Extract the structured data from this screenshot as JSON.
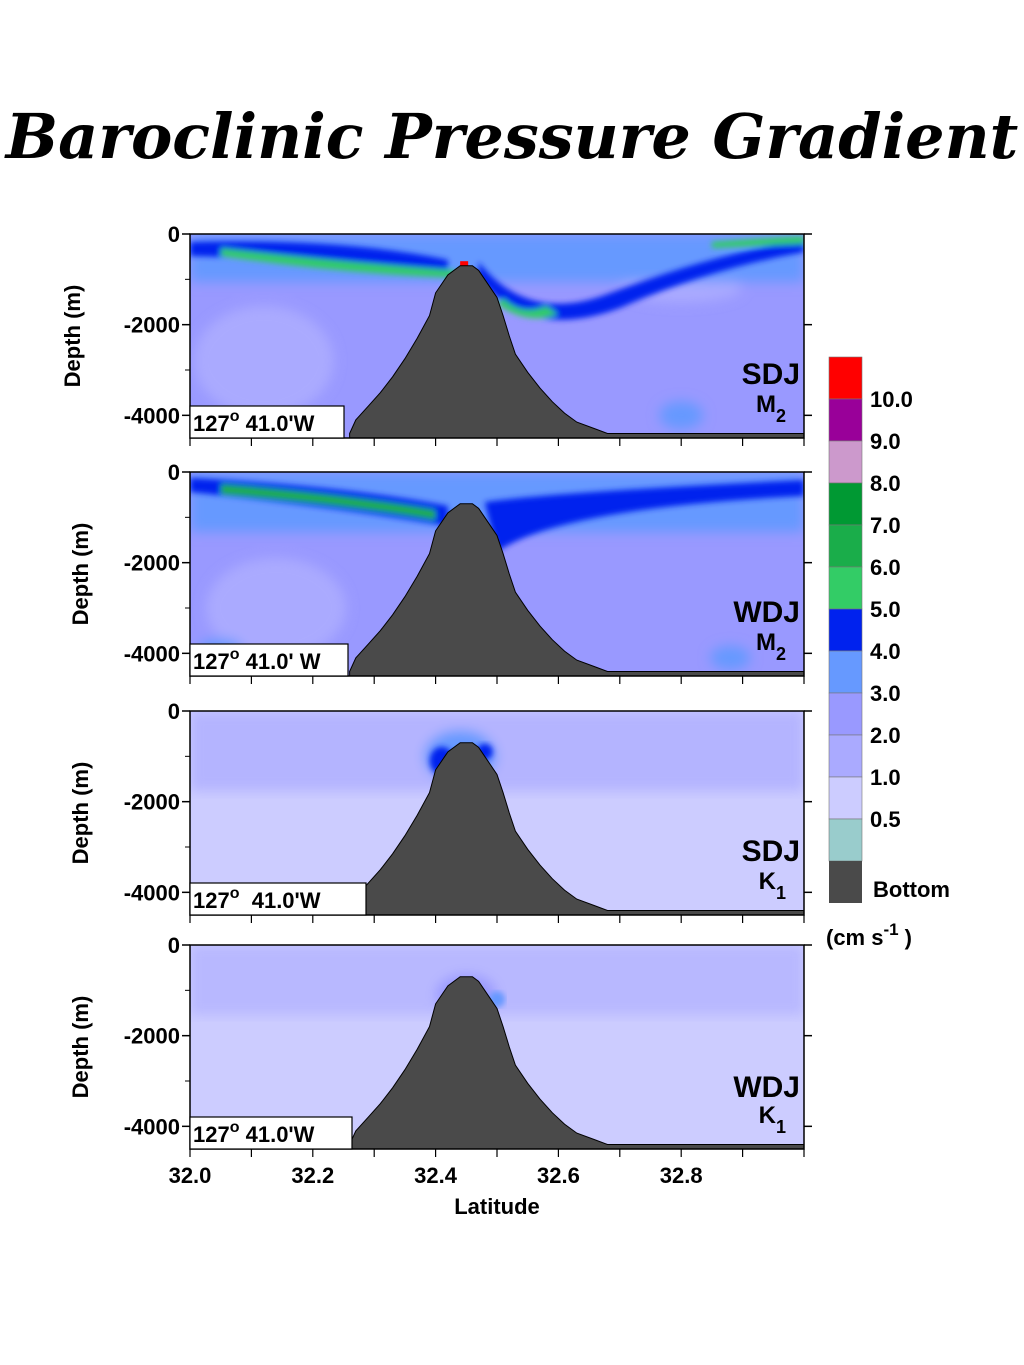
{
  "chart_data": {
    "type": "heatmap",
    "title": "Baroclinic Pressure Gradient",
    "xlabel": "Latitude",
    "ylabel": "Depth (m)",
    "xlim": [
      32.0,
      33.0
    ],
    "ylim": [
      -4500,
      0
    ],
    "x_ticks": [
      "32.0",
      "32.2",
      "32.4",
      "32.6",
      "32.8"
    ],
    "y_ticks": [
      "0",
      "-2000",
      "-4000"
    ],
    "legend": {
      "placement": "right",
      "unit": "(cm s",
      "unit_exp": "-1",
      "unit_close": ")",
      "levels": [
        {
          "label": "10.0",
          "color": "#ff0000"
        },
        {
          "label": "9.0",
          "color": "#990099"
        },
        {
          "label": "8.0",
          "color": "#cc99cc"
        },
        {
          "label": "7.0",
          "color": "#009933"
        },
        {
          "label": "6.0",
          "color": "#1aad4a"
        },
        {
          "label": "5.0",
          "color": "#33cc66"
        },
        {
          "label": "4.0",
          "color": "#0022ee"
        },
        {
          "label": "3.0",
          "color": "#6699ff"
        },
        {
          "label": "2.0",
          "color": "#9999ff"
        },
        {
          "label": "1.0",
          "color": "#aaaaff"
        },
        {
          "label": "0.5",
          "color": "#ccccff"
        },
        {
          "label": "",
          "color": "#99cccc"
        }
      ],
      "bottom_label": "Bottom",
      "bottom_color": "#4a4a4a"
    },
    "panels": [
      {
        "name": "SDJ",
        "constituent": "M",
        "constituent_sub": "2",
        "location_deg": "127",
        "location_sup": "o",
        "location_rest": " 41.0'W",
        "dominant_level": "2.0",
        "max_level": "10.0"
      },
      {
        "name": "WDJ",
        "constituent": "M",
        "constituent_sub": "2",
        "location_deg": "127",
        "location_sup": "o",
        "location_rest": " 41.0' W",
        "dominant_level": "2.0",
        "max_level": "6.0"
      },
      {
        "name": "SDJ",
        "constituent": "K",
        "constituent_sub": "1",
        "location_deg": "127",
        "location_sup": "o",
        "location_rest": "  41.0'W",
        "dominant_level": "0.5",
        "max_level": "4.0"
      },
      {
        "name": "WDJ",
        "constituent": "K",
        "constituent_sub": "1",
        "location_deg": "127",
        "location_sup": "o",
        "location_rest": " 41.0'W",
        "dominant_level": "0.5",
        "max_level": "3.0"
      }
    ],
    "bathymetry": {
      "seamount_peak_latitude": 32.45,
      "seamount_peak_depth": -700,
      "abyssal_depth": -4400,
      "profile": [
        [
          32.26,
          -4400
        ],
        [
          32.27,
          -4100
        ],
        [
          32.29,
          -3800
        ],
        [
          32.31,
          -3500
        ],
        [
          32.33,
          -3150
        ],
        [
          32.35,
          -2750
        ],
        [
          32.37,
          -2300
        ],
        [
          32.39,
          -1800
        ],
        [
          32.4,
          -1300
        ],
        [
          32.42,
          -900
        ],
        [
          32.44,
          -700
        ],
        [
          32.46,
          -700
        ],
        [
          32.47,
          -800
        ],
        [
          32.48,
          -1000
        ],
        [
          32.5,
          -1400
        ],
        [
          32.51,
          -1800
        ],
        [
          32.52,
          -2250
        ],
        [
          32.53,
          -2650
        ],
        [
          32.55,
          -3050
        ],
        [
          32.57,
          -3400
        ],
        [
          32.59,
          -3700
        ],
        [
          32.61,
          -3950
        ],
        [
          32.63,
          -4150
        ],
        [
          32.66,
          -4300
        ],
        [
          32.68,
          -4400
        ]
      ]
    }
  }
}
